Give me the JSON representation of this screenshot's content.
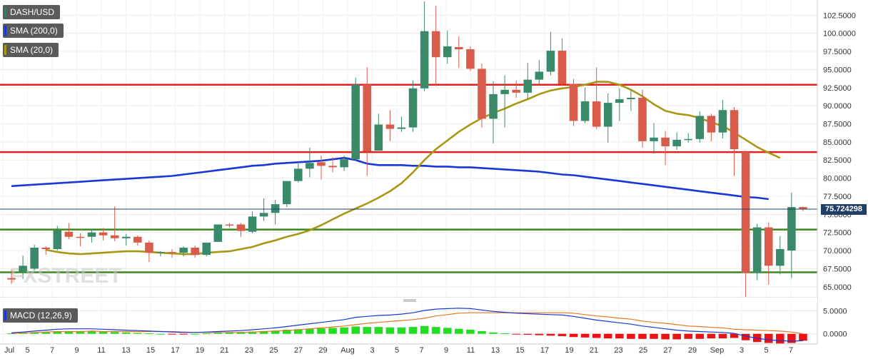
{
  "legend": {
    "pair": "DASH/USD",
    "sma200": "SMA (200,0)",
    "sma20": "SMA (20,0)",
    "macd": "MACD (12,26,9)",
    "pair_color": "#3b7a6b",
    "sma200_color": "#1a36d6",
    "sma20_color": "#a89712",
    "macd_color": "#1a36d6"
  },
  "last_price_label": "75.724298",
  "watermark": "FXSTREET",
  "chart_data": [
    {
      "type": "candlestick",
      "title": "",
      "xlabel": "",
      "ylabel": "",
      "ylim": [
        63.5,
        104.6
      ],
      "y_ticks": [
        "102.5000",
        "100.0000",
        "97.5000",
        "95.0000",
        "92.5000",
        "90.0000",
        "87.5000",
        "85.0000",
        "82.5000",
        "80.0000",
        "77.5000",
        "75.0000",
        "72.5000",
        "70.0000",
        "67.5000",
        "65.0000"
      ],
      "x_tick_labels": [
        "Jul",
        "5",
        "7",
        "9",
        "11",
        "13",
        "15",
        "17",
        "19",
        "21",
        "23",
        "25",
        "27",
        "29",
        "Aug",
        "3",
        "5",
        "7",
        "9",
        "11",
        "13",
        "15",
        "17",
        "19",
        "21",
        "23",
        "25",
        "27",
        "29",
        "Sep",
        "3",
        "5",
        "7"
      ],
      "up_color": "#3a8a6a",
      "down_color": "#d95c4a",
      "candles": [
        {
          "o": 66.2,
          "h": 67.4,
          "l": 65.4,
          "c": 66.0
        },
        {
          "o": 67.1,
          "h": 69.3,
          "l": 66.1,
          "c": 67.9
        },
        {
          "o": 67.5,
          "h": 70.8,
          "l": 67.3,
          "c": 70.4
        },
        {
          "o": 70.4,
          "h": 70.6,
          "l": 69.4,
          "c": 70.2
        },
        {
          "o": 70.2,
          "h": 73.4,
          "l": 70.0,
          "c": 72.8
        },
        {
          "o": 72.6,
          "h": 73.8,
          "l": 71.6,
          "c": 71.9
        },
        {
          "o": 71.9,
          "h": 72.4,
          "l": 70.6,
          "c": 71.8
        },
        {
          "o": 71.9,
          "h": 73.0,
          "l": 71.1,
          "c": 72.5
        },
        {
          "o": 72.5,
          "h": 73.1,
          "l": 71.4,
          "c": 72.1
        },
        {
          "o": 72.1,
          "h": 76.1,
          "l": 71.3,
          "c": 71.7
        },
        {
          "o": 71.7,
          "h": 72.3,
          "l": 70.7,
          "c": 71.9
        },
        {
          "o": 71.9,
          "h": 72.1,
          "l": 70.7,
          "c": 71.1
        },
        {
          "o": 71.1,
          "h": 71.4,
          "l": 68.4,
          "c": 69.7
        },
        {
          "o": 69.7,
          "h": 69.9,
          "l": 69.2,
          "c": 69.8
        },
        {
          "o": 69.8,
          "h": 70.2,
          "l": 69.0,
          "c": 69.7
        },
        {
          "o": 69.7,
          "h": 70.6,
          "l": 69.2,
          "c": 70.4
        },
        {
          "o": 70.4,
          "h": 70.7,
          "l": 69.0,
          "c": 69.4
        },
        {
          "o": 69.4,
          "h": 71.1,
          "l": 69.2,
          "c": 71.1
        },
        {
          "o": 71.2,
          "h": 73.6,
          "l": 71.2,
          "c": 73.6
        },
        {
          "o": 73.6,
          "h": 73.8,
          "l": 73.2,
          "c": 73.5
        },
        {
          "o": 73.6,
          "h": 73.8,
          "l": 71.9,
          "c": 72.7
        },
        {
          "o": 72.6,
          "h": 75.4,
          "l": 72.4,
          "c": 74.7
        },
        {
          "o": 74.7,
          "h": 77.2,
          "l": 74.1,
          "c": 75.2
        },
        {
          "o": 75.2,
          "h": 77.0,
          "l": 73.6,
          "c": 76.4
        },
        {
          "o": 76.4,
          "h": 79.5,
          "l": 76.0,
          "c": 79.6
        },
        {
          "o": 79.6,
          "h": 82.2,
          "l": 79.4,
          "c": 81.3
        },
        {
          "o": 81.3,
          "h": 84.2,
          "l": 80.1,
          "c": 82.1
        },
        {
          "o": 82.2,
          "h": 83.1,
          "l": 79.8,
          "c": 81.7
        },
        {
          "o": 81.7,
          "h": 82.9,
          "l": 80.8,
          "c": 81.5
        },
        {
          "o": 81.5,
          "h": 83.1,
          "l": 81.0,
          "c": 82.6
        },
        {
          "o": 82.6,
          "h": 93.9,
          "l": 82.4,
          "c": 92.9
        },
        {
          "o": 92.9,
          "h": 95.3,
          "l": 80.3,
          "c": 83.7
        },
        {
          "o": 83.8,
          "h": 88.9,
          "l": 84.2,
          "c": 87.4
        },
        {
          "o": 87.4,
          "h": 89.4,
          "l": 85.1,
          "c": 86.8
        },
        {
          "o": 86.8,
          "h": 88.5,
          "l": 86.4,
          "c": 87.0
        },
        {
          "o": 87.0,
          "h": 93.5,
          "l": 86.4,
          "c": 92.4
        },
        {
          "o": 92.4,
          "h": 104.4,
          "l": 92.0,
          "c": 100.3
        },
        {
          "o": 100.3,
          "h": 103.8,
          "l": 92.7,
          "c": 96.7
        },
        {
          "o": 96.7,
          "h": 100.4,
          "l": 95.8,
          "c": 98.2
        },
        {
          "o": 98.1,
          "h": 99.6,
          "l": 95.2,
          "c": 97.8
        },
        {
          "o": 97.8,
          "h": 98.2,
          "l": 94.8,
          "c": 95.1
        },
        {
          "o": 95.1,
          "h": 95.8,
          "l": 87.0,
          "c": 88.2
        },
        {
          "o": 88.2,
          "h": 93.4,
          "l": 84.8,
          "c": 91.6
        },
        {
          "o": 91.6,
          "h": 94.2,
          "l": 87.0,
          "c": 92.2
        },
        {
          "o": 92.2,
          "h": 93.5,
          "l": 91.1,
          "c": 91.8
        },
        {
          "o": 91.8,
          "h": 95.9,
          "l": 91.0,
          "c": 93.6
        },
        {
          "o": 93.6,
          "h": 96.3,
          "l": 92.8,
          "c": 94.7
        },
        {
          "o": 94.7,
          "h": 100.2,
          "l": 94.2,
          "c": 97.6
        },
        {
          "o": 97.6,
          "h": 99.3,
          "l": 92.7,
          "c": 93.0
        },
        {
          "o": 93.0,
          "h": 93.7,
          "l": 87.2,
          "c": 87.9
        },
        {
          "o": 87.9,
          "h": 92.5,
          "l": 87.6,
          "c": 90.6
        },
        {
          "o": 90.6,
          "h": 95.3,
          "l": 86.8,
          "c": 87.1
        },
        {
          "o": 87.1,
          "h": 91.7,
          "l": 84.9,
          "c": 90.4
        },
        {
          "o": 90.4,
          "h": 92.4,
          "l": 87.9,
          "c": 90.9
        },
        {
          "o": 90.9,
          "h": 92.2,
          "l": 89.3,
          "c": 91.1
        },
        {
          "o": 91.1,
          "h": 92.2,
          "l": 84.2,
          "c": 85.1
        },
        {
          "o": 85.1,
          "h": 87.6,
          "l": 83.4,
          "c": 85.6
        },
        {
          "o": 85.6,
          "h": 86.5,
          "l": 81.8,
          "c": 84.4
        },
        {
          "o": 84.4,
          "h": 86.3,
          "l": 83.9,
          "c": 85.3
        },
        {
          "o": 85.3,
          "h": 86.2,
          "l": 84.9,
          "c": 85.4
        },
        {
          "o": 85.4,
          "h": 89.2,
          "l": 84.9,
          "c": 88.6
        },
        {
          "o": 88.6,
          "h": 88.9,
          "l": 85.1,
          "c": 86.3
        },
        {
          "o": 86.3,
          "h": 90.8,
          "l": 85.5,
          "c": 89.4
        },
        {
          "o": 89.4,
          "h": 89.8,
          "l": 80.3,
          "c": 84.0
        },
        {
          "o": 83.6,
          "h": 83.8,
          "l": 63.6,
          "c": 66.9
        },
        {
          "o": 66.9,
          "h": 73.7,
          "l": 65.9,
          "c": 73.2
        },
        {
          "o": 73.2,
          "h": 73.9,
          "l": 65.3,
          "c": 67.9
        },
        {
          "o": 67.9,
          "h": 72.0,
          "l": 66.7,
          "c": 70.2
        },
        {
          "o": 70.0,
          "h": 78.0,
          "l": 66.2,
          "c": 76.0
        },
        {
          "o": 76.0,
          "h": 76.1,
          "l": 75.4,
          "c": 75.7
        }
      ],
      "sma20": [
        70.1,
        69.8,
        69.6,
        69.5,
        69.6,
        69.7,
        69.8,
        69.9,
        69.9,
        69.8,
        69.7,
        69.6,
        69.5,
        69.5,
        69.7,
        69.8,
        69.9,
        70.2,
        70.5,
        71.0,
        71.4,
        71.9,
        72.3,
        72.8,
        73.5,
        74.3,
        75.1,
        75.8,
        76.5,
        77.3,
        78.2,
        79.3,
        80.8,
        82.5,
        84.0,
        85.2,
        86.4,
        87.4,
        88.3,
        89.0,
        89.6,
        90.3,
        90.9,
        91.6,
        92.1,
        92.4,
        92.6,
        92.9,
        93.3,
        93.3,
        92.9,
        92.2,
        91.3,
        90.2,
        89.3,
        88.9,
        88.7,
        88.3,
        87.7,
        87.2,
        86.3,
        85.3,
        84.3,
        83.5,
        82.8
      ],
      "sma20_start_index": 0,
      "sma200": [
        78.9,
        79.0,
        79.1,
        79.2,
        79.3,
        79.4,
        79.5,
        79.6,
        79.7,
        79.8,
        79.9,
        80.0,
        80.1,
        80.2,
        80.3,
        80.5,
        80.7,
        80.9,
        81.1,
        81.3,
        81.5,
        81.7,
        81.8,
        82.0,
        82.1,
        82.2,
        82.3,
        82.4,
        82.6,
        82.8,
        82.5,
        82.0,
        81.8,
        81.8,
        81.8,
        81.7,
        81.7,
        81.6,
        81.6,
        81.5,
        81.5,
        81.4,
        81.3,
        81.2,
        81.1,
        81.0,
        80.9,
        80.7,
        80.5,
        80.4,
        80.2,
        80.0,
        79.8,
        79.6,
        79.4,
        79.2,
        79.0,
        78.8,
        78.6,
        78.4,
        78.2,
        78.0,
        77.8,
        77.6,
        77.4,
        77.3,
        77.1
      ],
      "sma200_start_index": 0,
      "horizontal_lines": [
        {
          "value": 92.9,
          "color": "#e02020"
        },
        {
          "value": 83.6,
          "color": "#e02020"
        },
        {
          "value": 72.9,
          "color": "#3a8a1e"
        },
        {
          "value": 67.0,
          "color": "#3a8a1e"
        }
      ],
      "last_price": 75.72,
      "grid": true
    },
    {
      "type": "macd",
      "title": "MACD (12,26,9)",
      "ylim": [
        -1.6,
        6.5
      ],
      "y_ticks": [
        "5.0000",
        "0.0000"
      ],
      "macd_color": "#1a36d6",
      "signal_color": "#e87722",
      "hist_up_color": "#22dd22",
      "hist_down_color": "#ee1111",
      "histogram": [
        0.1,
        0.2,
        0.3,
        0.4,
        0.5,
        0.6,
        0.6,
        0.5,
        0.5,
        0.4,
        0.3,
        0.2,
        0.1,
        0.0,
        -0.1,
        -0.1,
        0.0,
        0.1,
        0.2,
        0.3,
        0.4,
        0.5,
        0.6,
        0.7,
        0.9,
        1.0,
        1.1,
        1.2,
        1.3,
        1.4,
        1.6,
        1.5,
        1.5,
        1.4,
        1.4,
        1.5,
        1.7,
        1.5,
        1.3,
        1.1,
        0.9,
        0.6,
        0.3,
        0.1,
        -0.1,
        -0.2,
        -0.3,
        -0.4,
        -0.5,
        -0.7,
        -0.8,
        -0.9,
        -1.0,
        -1.0,
        -1.1,
        -1.1,
        -1.1,
        -1.2,
        -1.2,
        -1.1,
        -1.1,
        -1.0,
        -1.0,
        -0.9,
        -1.4,
        -1.8,
        -2.0,
        -2.1,
        -2.0,
        -1.5
      ],
      "macd_line": [
        0.2,
        0.4,
        0.6,
        0.8,
        1.0,
        1.1,
        1.1,
        1.1,
        1.0,
        0.9,
        0.8,
        0.7,
        0.6,
        0.5,
        0.4,
        0.3,
        0.3,
        0.4,
        0.5,
        0.6,
        0.7,
        0.9,
        1.1,
        1.3,
        1.6,
        1.9,
        2.2,
        2.5,
        2.8,
        3.1,
        3.6,
        3.8,
        4.0,
        4.1,
        4.3,
        4.6,
        5.1,
        5.4,
        5.5,
        5.6,
        5.5,
        5.2,
        4.9,
        4.7,
        4.5,
        4.4,
        4.3,
        4.2,
        4.1,
        3.8,
        3.4,
        3.0,
        2.7,
        2.4,
        2.1,
        1.7,
        1.4,
        1.1,
        0.8,
        0.6,
        0.5,
        0.4,
        0.3,
        0.1,
        -0.5,
        -1.0,
        -1.3,
        -1.5,
        -1.6,
        -1.5
      ],
      "signal_line": [
        0.1,
        0.2,
        0.3,
        0.4,
        0.5,
        0.5,
        0.5,
        0.6,
        0.5,
        0.5,
        0.5,
        0.5,
        0.5,
        0.5,
        0.5,
        0.4,
        0.3,
        0.3,
        0.3,
        0.3,
        0.3,
        0.4,
        0.5,
        0.6,
        0.7,
        0.9,
        1.1,
        1.3,
        1.5,
        1.7,
        2.0,
        2.3,
        2.5,
        2.7,
        2.9,
        3.1,
        3.4,
        3.9,
        4.2,
        4.5,
        4.6,
        4.6,
        4.6,
        4.6,
        4.6,
        4.6,
        4.6,
        4.6,
        4.6,
        4.5,
        4.2,
        3.9,
        3.7,
        3.4,
        3.2,
        2.8,
        2.5,
        2.3,
        2.0,
        1.7,
        1.6,
        1.4,
        1.3,
        1.0,
        0.9,
        0.8,
        0.7,
        0.6,
        0.4,
        0.0
      ]
    }
  ]
}
